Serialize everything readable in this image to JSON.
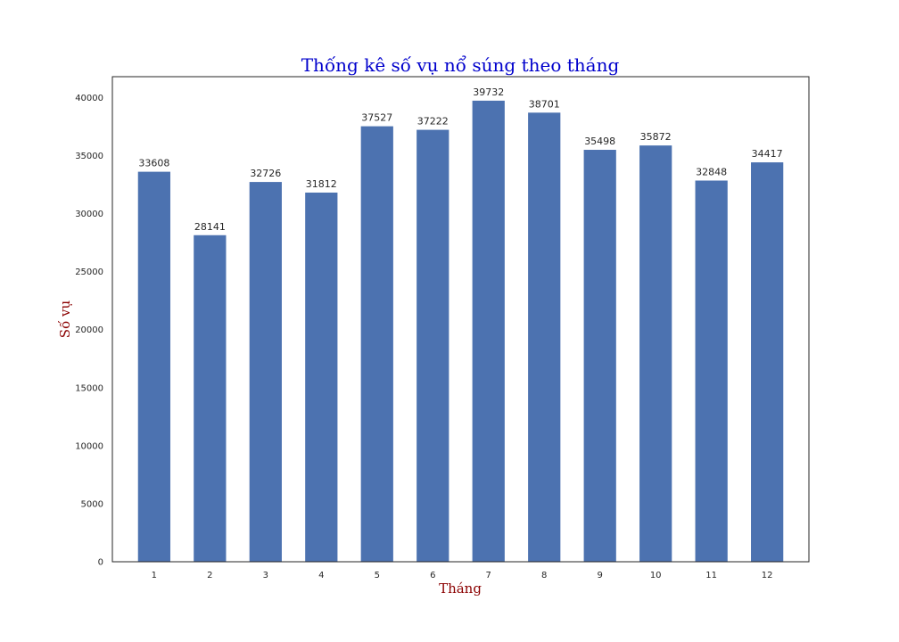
{
  "chart_data": {
    "type": "bar",
    "title": "Thống kê số vụ nổ súng theo tháng",
    "xlabel": "Tháng",
    "ylabel": "Số vụ",
    "categories": [
      "1",
      "2",
      "3",
      "4",
      "5",
      "6",
      "7",
      "8",
      "9",
      "10",
      "11",
      "12"
    ],
    "values": [
      33608,
      28141,
      32726,
      31812,
      37527,
      37222,
      39732,
      38701,
      35498,
      35872,
      32848,
      34417
    ],
    "ylim": [
      0,
      41800
    ],
    "yticks": [
      0,
      5000,
      10000,
      15000,
      20000,
      25000,
      30000,
      35000,
      40000
    ],
    "grid": false,
    "legend": "none",
    "colors": {
      "bar": "#4c72b0",
      "title": "#0000cc",
      "axis_label": "#8b0000",
      "frame": "#262626"
    }
  }
}
